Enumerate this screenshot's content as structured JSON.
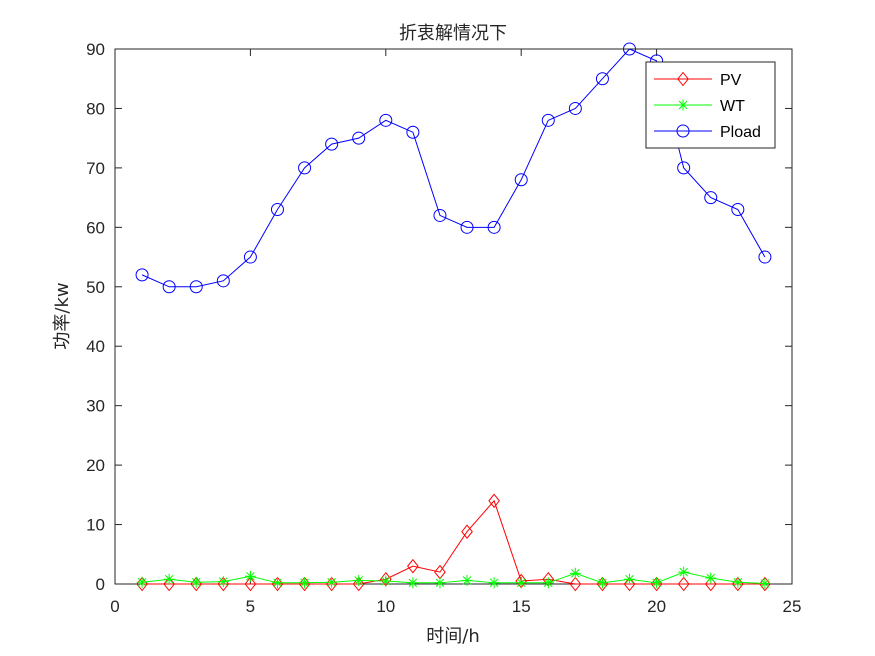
{
  "chart_data": {
    "type": "line",
    "title": "折衷解情况下",
    "xlabel": "时间/h",
    "ylabel": "功率/kw",
    "xlim": [
      0,
      25
    ],
    "ylim": [
      0,
      90
    ],
    "xticks": [
      0,
      5,
      10,
      15,
      20,
      25
    ],
    "yticks": [
      0,
      10,
      20,
      30,
      40,
      50,
      60,
      70,
      80,
      90
    ],
    "grid": false,
    "legend_position": "top-right",
    "x": [
      1,
      2,
      3,
      4,
      5,
      6,
      7,
      8,
      9,
      10,
      11,
      12,
      13,
      14,
      15,
      16,
      17,
      18,
      19,
      20,
      21,
      22,
      23,
      24
    ],
    "series": [
      {
        "name": "PV",
        "color": "#ff0000",
        "marker": "diamond",
        "values": [
          0,
          0,
          0,
          0,
          0,
          0,
          0,
          0,
          0,
          0.8,
          3.0,
          2.0,
          8.8,
          14.0,
          0.5,
          0.8,
          0,
          0,
          0,
          0,
          0,
          0,
          0,
          0
        ]
      },
      {
        "name": "WT",
        "color": "#00ff00",
        "marker": "asterisk",
        "values": [
          0.3,
          0.8,
          0.3,
          0.4,
          1.3,
          0.2,
          0.2,
          0.3,
          0.6,
          0.5,
          0.2,
          0.2,
          0.6,
          0.2,
          0.2,
          0.2,
          1.8,
          0.2,
          0.8,
          0.2,
          2.0,
          1.0,
          0.3,
          0.1
        ]
      },
      {
        "name": "Pload",
        "color": "#0000ff",
        "marker": "circle",
        "values": [
          52,
          50,
          50,
          51,
          55,
          63,
          70,
          74,
          75,
          78,
          76,
          62,
          60,
          60,
          68,
          78,
          80,
          85,
          90,
          88,
          70,
          65,
          63,
          55
        ]
      }
    ]
  }
}
